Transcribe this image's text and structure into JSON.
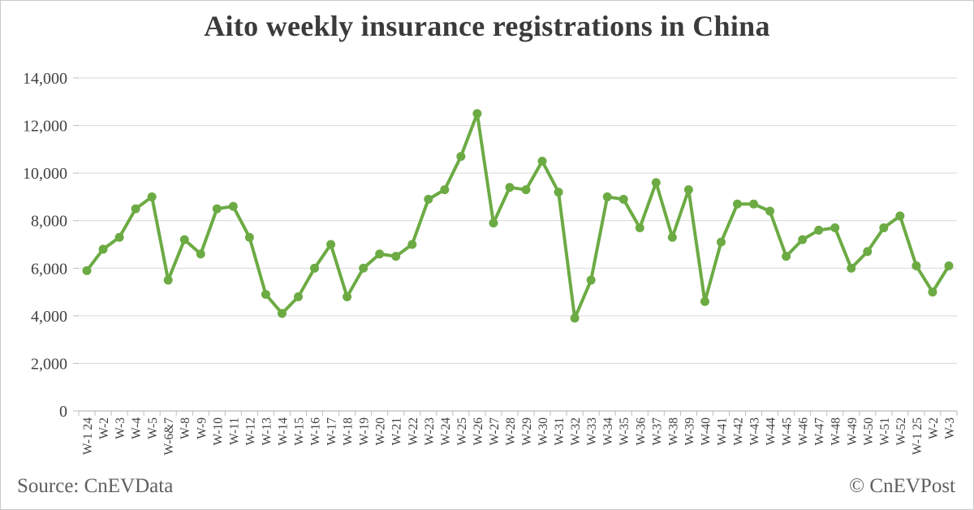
{
  "title": "Aito weekly insurance registrations in China",
  "source": "Source: CnEVData",
  "copyright": "© CnEVPost",
  "colors": {
    "line": "#6cab44",
    "marker": "#6cab44",
    "gridline": "#d9d9d9",
    "axis": "#bdbdbd",
    "title_text": "#3b3b3b",
    "tick_label": "#404040",
    "footer_text": "#5f5f5f"
  },
  "chart_data": {
    "type": "line",
    "title": "Aito weekly insurance registrations in China",
    "xlabel": "",
    "ylabel": "",
    "grid": true,
    "legend": false,
    "marker": "circle",
    "ylim": [
      0,
      14000
    ],
    "ytick_step": 2000,
    "ytick_values": [
      0,
      2000,
      4000,
      6000,
      8000,
      10000,
      12000,
      14000
    ],
    "ytick_labels": [
      "0",
      "2,000",
      "4,000",
      "6,000",
      "8,000",
      "10,000",
      "12,000",
      "14,000"
    ],
    "categories": [
      "W-1 24",
      "W-2",
      "W-3",
      "W-4",
      "W-5",
      "W-6&7",
      "W-8",
      "W-9",
      "W-10",
      "W-11",
      "W-12",
      "W-13",
      "W-14",
      "W-15",
      "W-16",
      "W-17",
      "W-18",
      "W-19",
      "W-20",
      "W-21",
      "W-22",
      "W-23",
      "W-24",
      "W-25",
      "W-26",
      "W-27",
      "W-28",
      "W-29",
      "W-30",
      "W-31",
      "W-32",
      "W-33",
      "W-34",
      "W-35",
      "W-36",
      "W-37",
      "W-38",
      "W-39",
      "W-40",
      "W-41",
      "W-42",
      "W-43",
      "W-44",
      "W-45",
      "W-46",
      "W-47",
      "W-48",
      "W-49",
      "W-50",
      "W-51",
      "W-52",
      "W-1 25",
      "W-2",
      "W-3"
    ],
    "values": [
      5900,
      6800,
      7300,
      8500,
      9000,
      5500,
      7200,
      6600,
      8500,
      8600,
      7300,
      4900,
      4100,
      4800,
      6000,
      7000,
      4800,
      6000,
      6600,
      6500,
      7000,
      8900,
      9300,
      10700,
      12500,
      7900,
      9400,
      9300,
      10500,
      9200,
      3900,
      5500,
      9000,
      8900,
      7700,
      9600,
      7300,
      9300,
      4600,
      7100,
      8700,
      8700,
      8400,
      6500,
      7200,
      7600,
      7700,
      6000,
      6700,
      7700,
      8200,
      6100,
      5000,
      6100
    ]
  }
}
